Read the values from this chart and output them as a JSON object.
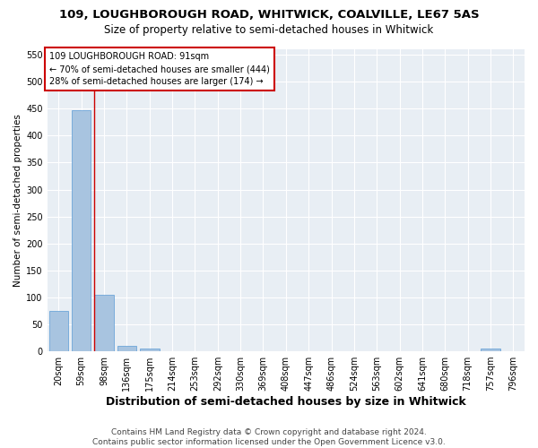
{
  "title": "109, LOUGHBOROUGH ROAD, WHITWICK, COALVILLE, LE67 5AS",
  "subtitle": "Size of property relative to semi-detached houses in Whitwick",
  "xlabel": "Distribution of semi-detached houses by size in Whitwick",
  "ylabel": "Number of semi-detached properties",
  "bins": [
    "20sqm",
    "59sqm",
    "98sqm",
    "136sqm",
    "175sqm",
    "214sqm",
    "253sqm",
    "292sqm",
    "330sqm",
    "369sqm",
    "408sqm",
    "447sqm",
    "486sqm",
    "524sqm",
    "563sqm",
    "602sqm",
    "641sqm",
    "680sqm",
    "718sqm",
    "757sqm",
    "796sqm"
  ],
  "values": [
    75,
    447,
    105,
    10,
    5,
    0,
    0,
    0,
    0,
    0,
    0,
    0,
    0,
    0,
    0,
    0,
    0,
    0,
    0,
    5,
    0
  ],
  "bar_color": "#a8c4e0",
  "bar_edge_color": "#5b9bd5",
  "property_line_x": 2,
  "property_line_color": "#cc0000",
  "annotation_text": "109 LOUGHBOROUGH ROAD: 91sqm\n← 70% of semi-detached houses are smaller (444)\n28% of semi-detached houses are larger (174) →",
  "annotation_box_color": "#cc0000",
  "ylim": [
    0,
    560
  ],
  "yticks": [
    0,
    50,
    100,
    150,
    200,
    250,
    300,
    350,
    400,
    450,
    500,
    550
  ],
  "background_color": "#e8eef4",
  "grid_color": "#ffffff",
  "footer": "Contains HM Land Registry data © Crown copyright and database right 2024.\nContains public sector information licensed under the Open Government Licence v3.0.",
  "title_fontsize": 9.5,
  "subtitle_fontsize": 8.5,
  "xlabel_fontsize": 9,
  "ylabel_fontsize": 7.5,
  "tick_fontsize": 7,
  "annotation_fontsize": 7,
  "footer_fontsize": 6.5
}
